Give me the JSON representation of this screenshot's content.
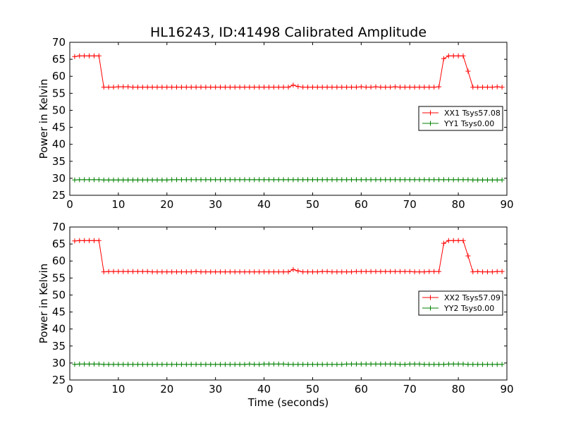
{
  "chart_data": [
    {
      "type": "line",
      "title": "HL16243, ID:41498 Calibrated Amplitude",
      "xlabel": "",
      "ylabel": "Power in Kelvin",
      "xlim": [
        0,
        90
      ],
      "ylim": [
        25,
        70
      ],
      "xticks": [
        0,
        10,
        20,
        30,
        40,
        50,
        60,
        70,
        80,
        90
      ],
      "yticks": [
        25,
        30,
        35,
        40,
        45,
        50,
        55,
        60,
        65,
        70
      ],
      "grid": false,
      "legend_position": "right",
      "x": [
        1,
        2,
        3,
        4,
        5,
        6,
        7,
        8,
        9,
        10,
        11,
        12,
        13,
        14,
        15,
        16,
        17,
        18,
        19,
        20,
        21,
        22,
        23,
        24,
        25,
        26,
        27,
        28,
        29,
        30,
        31,
        32,
        33,
        34,
        35,
        36,
        37,
        38,
        39,
        40,
        41,
        42,
        43,
        44,
        45,
        46,
        47,
        48,
        49,
        50,
        51,
        52,
        53,
        54,
        55,
        56,
        57,
        58,
        59,
        60,
        61,
        62,
        63,
        64,
        65,
        66,
        67,
        68,
        69,
        70,
        71,
        72,
        73,
        74,
        75,
        76,
        77,
        78,
        79,
        80,
        81,
        82,
        83,
        84,
        85,
        86,
        87,
        88,
        89
      ],
      "series": [
        {
          "name": "XX1 Tsys57.08",
          "color": "#ff0000",
          "values": [
            65.8,
            66.0,
            66.0,
            66.0,
            66.0,
            66.0,
            56.8,
            56.8,
            56.8,
            56.9,
            56.9,
            56.9,
            56.8,
            56.8,
            56.8,
            56.8,
            56.8,
            56.8,
            56.8,
            56.8,
            56.8,
            56.8,
            56.8,
            56.8,
            56.8,
            56.8,
            56.8,
            56.8,
            56.8,
            56.8,
            56.8,
            56.8,
            56.8,
            56.8,
            56.8,
            56.8,
            56.8,
            56.8,
            56.8,
            56.8,
            56.8,
            56.8,
            56.8,
            56.8,
            56.8,
            57.4,
            57.0,
            56.8,
            56.8,
            56.8,
            56.8,
            56.8,
            56.8,
            56.8,
            56.8,
            56.8,
            56.8,
            56.8,
            56.8,
            56.9,
            56.8,
            56.8,
            56.9,
            56.8,
            56.8,
            56.8,
            56.9,
            56.8,
            56.8,
            56.8,
            56.8,
            56.8,
            56.8,
            56.8,
            56.8,
            56.9,
            65.2,
            66.0,
            66.0,
            66.0,
            66.0,
            61.5,
            56.8,
            56.8,
            56.8,
            56.8,
            56.8,
            56.9,
            56.8
          ]
        },
        {
          "name": "YY1 Tsys0.00",
          "color": "#008000",
          "values": [
            29.5,
            29.6,
            29.6,
            29.6,
            29.6,
            29.6,
            29.5,
            29.5,
            29.5,
            29.5,
            29.5,
            29.5,
            29.5,
            29.5,
            29.5,
            29.5,
            29.5,
            29.5,
            29.5,
            29.5,
            29.6,
            29.6,
            29.6,
            29.6,
            29.6,
            29.6,
            29.6,
            29.6,
            29.6,
            29.6,
            29.6,
            29.6,
            29.6,
            29.6,
            29.6,
            29.6,
            29.6,
            29.6,
            29.6,
            29.6,
            29.6,
            29.6,
            29.6,
            29.6,
            29.6,
            29.6,
            29.6,
            29.6,
            29.6,
            29.6,
            29.6,
            29.6,
            29.6,
            29.6,
            29.6,
            29.6,
            29.6,
            29.6,
            29.6,
            29.6,
            29.6,
            29.6,
            29.6,
            29.6,
            29.6,
            29.6,
            29.6,
            29.6,
            29.6,
            29.6,
            29.6,
            29.6,
            29.6,
            29.6,
            29.6,
            29.6,
            29.6,
            29.6,
            29.6,
            29.6,
            29.6,
            29.6,
            29.5,
            29.5,
            29.5,
            29.5,
            29.5,
            29.5,
            29.5
          ]
        }
      ]
    },
    {
      "type": "line",
      "title": "",
      "xlabel": "Time (seconds)",
      "ylabel": "Power in Kelvin",
      "xlim": [
        0,
        90
      ],
      "ylim": [
        25,
        70
      ],
      "xticks": [
        0,
        10,
        20,
        30,
        40,
        50,
        60,
        70,
        80,
        90
      ],
      "yticks": [
        25,
        30,
        35,
        40,
        45,
        50,
        55,
        60,
        65,
        70
      ],
      "grid": false,
      "legend_position": "right",
      "x": [
        1,
        2,
        3,
        4,
        5,
        6,
        7,
        8,
        9,
        10,
        11,
        12,
        13,
        14,
        15,
        16,
        17,
        18,
        19,
        20,
        21,
        22,
        23,
        24,
        25,
        26,
        27,
        28,
        29,
        30,
        31,
        32,
        33,
        34,
        35,
        36,
        37,
        38,
        39,
        40,
        41,
        42,
        43,
        44,
        45,
        46,
        47,
        48,
        49,
        50,
        51,
        52,
        53,
        54,
        55,
        56,
        57,
        58,
        59,
        60,
        61,
        62,
        63,
        64,
        65,
        66,
        67,
        68,
        69,
        70,
        71,
        72,
        73,
        74,
        75,
        76,
        77,
        78,
        79,
        80,
        81,
        82,
        83,
        84,
        85,
        86,
        87,
        88,
        89
      ],
      "series": [
        {
          "name": "XX2 Tsys57.09",
          "color": "#ff0000",
          "values": [
            65.9,
            66.0,
            66.0,
            66.0,
            66.0,
            66.0,
            56.8,
            56.9,
            56.9,
            56.9,
            56.9,
            56.9,
            56.9,
            56.9,
            56.9,
            56.9,
            56.8,
            56.8,
            56.8,
            56.8,
            56.8,
            56.8,
            56.8,
            56.8,
            56.8,
            56.9,
            56.8,
            56.8,
            56.8,
            56.8,
            56.8,
            56.8,
            56.8,
            56.8,
            56.8,
            56.8,
            56.8,
            56.8,
            56.8,
            56.8,
            56.8,
            56.8,
            56.8,
            56.8,
            56.8,
            57.5,
            57.1,
            56.8,
            56.8,
            56.8,
            56.8,
            56.9,
            56.9,
            56.8,
            56.8,
            56.8,
            56.8,
            56.8,
            56.9,
            56.9,
            56.9,
            56.9,
            56.9,
            56.9,
            56.9,
            56.9,
            56.9,
            56.9,
            56.9,
            56.9,
            56.8,
            56.8,
            56.8,
            56.9,
            56.9,
            56.9,
            65.2,
            66.0,
            66.0,
            66.0,
            66.0,
            61.5,
            56.8,
            56.9,
            56.8,
            56.8,
            56.8,
            56.9,
            56.9
          ]
        },
        {
          "name": "YY2 Tsys0.00",
          "color": "#008000",
          "values": [
            29.6,
            29.7,
            29.7,
            29.7,
            29.7,
            29.7,
            29.6,
            29.6,
            29.6,
            29.6,
            29.6,
            29.6,
            29.6,
            29.6,
            29.6,
            29.6,
            29.6,
            29.6,
            29.6,
            29.6,
            29.6,
            29.6,
            29.6,
            29.6,
            29.6,
            29.6,
            29.6,
            29.6,
            29.6,
            29.6,
            29.6,
            29.6,
            29.6,
            29.6,
            29.6,
            29.6,
            29.7,
            29.6,
            29.6,
            29.7,
            29.7,
            29.7,
            29.7,
            29.7,
            29.6,
            29.6,
            29.6,
            29.6,
            29.6,
            29.6,
            29.6,
            29.6,
            29.6,
            29.6,
            29.6,
            29.6,
            29.7,
            29.7,
            29.7,
            29.7,
            29.7,
            29.7,
            29.7,
            29.7,
            29.7,
            29.7,
            29.7,
            29.6,
            29.6,
            29.7,
            29.7,
            29.7,
            29.6,
            29.6,
            29.6,
            29.6,
            29.6,
            29.7,
            29.7,
            29.7,
            29.7,
            29.6,
            29.6,
            29.6,
            29.6,
            29.6,
            29.6,
            29.6,
            29.6
          ]
        }
      ]
    }
  ]
}
